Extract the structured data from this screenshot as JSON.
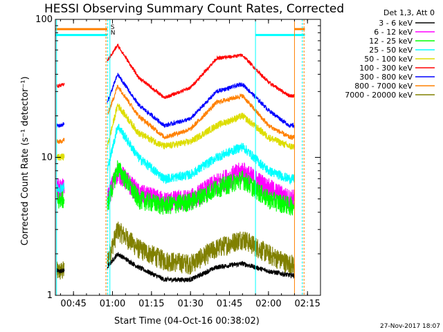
{
  "chart_data": {
    "type": "line",
    "title": "HESSI Observing Summary Count Rates, Corrected",
    "xlabel": "Start Time (04-Oct-16 00:38:02)",
    "ylabel": "Corrected Count Rate (s⁻¹ detector⁻¹)",
    "yscale": "log",
    "ylim": [
      1,
      100
    ],
    "xlim": [
      "00:38:02",
      "02:20:00"
    ],
    "x_ticks": [
      "00:45",
      "01:00",
      "01:15",
      "01:30",
      "01:45",
      "02:00",
      "02:15"
    ],
    "y_ticks": [
      "1",
      "10",
      "100"
    ],
    "legend_header": "Det 1,3, Att 0",
    "legend_placement": "right",
    "flag_labels": {
      "s": "S",
      "n": "N"
    },
    "footer": "27-Nov-2017 18:07",
    "series": [
      {
        "name": "3 - 6 keV",
        "color": "#000000",
        "x": [
          "00:40",
          "00:58",
          "01:02",
          "01:10",
          "01:20",
          "01:30",
          "01:40",
          "01:50",
          "02:00",
          "02:08"
        ],
        "values": [
          1.5,
          1.6,
          2.0,
          1.6,
          1.3,
          1.3,
          1.6,
          1.7,
          1.5,
          1.4
        ]
      },
      {
        "name": "6 - 12 keV",
        "color": "#ff00ff",
        "x": [
          "00:40",
          "00:58",
          "01:02",
          "01:10",
          "01:20",
          "01:30",
          "01:40",
          "01:50",
          "02:00",
          "02:08"
        ],
        "values": [
          6.0,
          5.0,
          8.0,
          5.5,
          4.8,
          5.0,
          6.5,
          8.0,
          6.0,
          5.0
        ]
      },
      {
        "name": "12 - 25 keV",
        "color": "#00ff00",
        "x": [
          "00:40",
          "00:58",
          "01:02",
          "01:10",
          "01:20",
          "01:30",
          "01:40",
          "01:50",
          "02:00",
          "02:08"
        ],
        "values": [
          5.0,
          4.5,
          8.5,
          5.0,
          4.5,
          4.8,
          6.0,
          7.0,
          5.0,
          4.5
        ]
      },
      {
        "name": "25 - 50 keV",
        "color": "#00ffff",
        "x": [
          "00:40",
          "00:58",
          "01:02",
          "01:10",
          "01:20",
          "01:30",
          "01:40",
          "01:50",
          "02:00",
          "02:08"
        ],
        "values": [
          6.0,
          8.0,
          17.0,
          10.0,
          7.0,
          7.5,
          10.0,
          12.0,
          8.0,
          7.0
        ]
      },
      {
        "name": "50 - 100 keV",
        "color": "#dddd00",
        "x": [
          "00:40",
          "00:58",
          "01:02",
          "01:10",
          "01:20",
          "01:30",
          "01:40",
          "01:50",
          "02:00",
          "02:08"
        ],
        "values": [
          10.0,
          12.0,
          24.0,
          15.0,
          12.0,
          13.0,
          17.0,
          20.0,
          14.0,
          12.0
        ]
      },
      {
        "name": "100 - 300 keV",
        "color": "#ff0000",
        "x": [
          "00:40",
          "00:58",
          "01:02",
          "01:10",
          "01:20",
          "01:30",
          "01:40",
          "01:50",
          "02:00",
          "02:08"
        ],
        "values": [
          33.0,
          50.0,
          65.0,
          38.0,
          27.0,
          32.0,
          52.0,
          55.0,
          35.0,
          28.0
        ]
      },
      {
        "name": "300 - 800 keV",
        "color": "#0000ff",
        "x": [
          "00:40",
          "00:58",
          "01:02",
          "01:10",
          "01:20",
          "01:30",
          "01:40",
          "01:50",
          "02:00",
          "02:08"
        ],
        "values": [
          17.0,
          25.0,
          40.0,
          24.0,
          17.0,
          19.0,
          30.0,
          34.0,
          22.0,
          17.0
        ]
      },
      {
        "name": "800 - 7000 keV",
        "color": "#ff8000",
        "x": [
          "00:40",
          "00:58",
          "01:02",
          "01:10",
          "01:20",
          "01:30",
          "01:40",
          "01:50",
          "02:00",
          "02:08"
        ],
        "values": [
          13.0,
          20.0,
          33.0,
          20.0,
          14.0,
          16.0,
          25.0,
          28.0,
          17.0,
          14.0
        ]
      },
      {
        "name": "7000 - 20000 keV",
        "color": "#808000",
        "x": [
          "00:40",
          "00:58",
          "01:02",
          "01:10",
          "01:20",
          "01:30",
          "01:40",
          "01:50",
          "02:00",
          "02:08"
        ],
        "values": [
          1.5,
          1.8,
          3.0,
          2.2,
          1.8,
          1.7,
          2.2,
          2.6,
          2.0,
          1.7
        ]
      }
    ],
    "flag_markers": [
      {
        "flag": "S",
        "color": "#ff8000",
        "level": 85,
        "x_start": "00:38:02",
        "x_end": "00:58"
      },
      {
        "flag": "S",
        "color": "#ff8000",
        "level": 85,
        "x_start": "02:10",
        "x_end": "02:14"
      },
      {
        "flag": "N",
        "color": "#00ffff",
        "level": 77,
        "x_start": "00:38:02",
        "x_end": "00:58"
      },
      {
        "flag": "N",
        "color": "#00ffff",
        "level": 77,
        "x_start": "01:55",
        "x_end": "02:14"
      }
    ]
  }
}
